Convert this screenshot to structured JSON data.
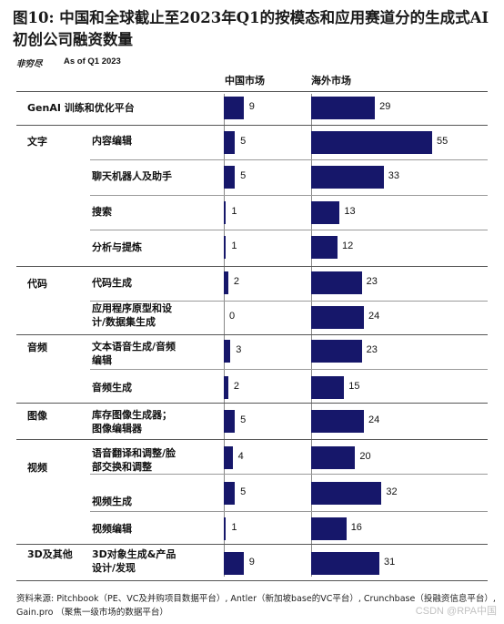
{
  "title": "图10: 中国和全球截止至2023年Q1的按模态和应用赛道分的生成式AI初创公司融资数量",
  "source_left": "非穷尽",
  "as_of": "As of Q1 2023",
  "footnote": "资料来源: Pitchbook（PE、VC及并购项目数据平台）, Antler（新加坡base的VC平台）, Crunchbase（投融资信息平台）, Gain.pro （聚焦一级市场的数据平台）",
  "watermark": "CSDN @RPA中国",
  "chart_data": {
    "type": "bar",
    "orientation": "horizontal",
    "series": [
      {
        "name": "中国市场",
        "values": [
          9,
          5,
          5,
          1,
          1,
          2,
          0,
          3,
          2,
          5,
          4,
          5,
          1,
          9
        ]
      },
      {
        "name": "海外市场",
        "values": [
          29,
          55,
          33,
          13,
          12,
          23,
          24,
          23,
          15,
          24,
          20,
          32,
          16,
          31
        ]
      }
    ],
    "categories": [
      "GenAI 训练和优化平台",
      "内容编辑",
      "聊天机器人及助手",
      "搜索",
      "分析与提炼",
      "代码生成",
      "应用程序原型和设计/数据集生成",
      "文本语音生成/音频编辑",
      "音频生成",
      "库存图像生成器；图像编辑器",
      "语音翻译和调整/脸部交换和调整",
      "视频生成",
      "视频编辑",
      "3D对象生成&产品设计/发现"
    ],
    "category_display": [
      "GenAI 训练和优化平台",
      "内容编辑",
      "聊天机器人及助手",
      "搜索",
      "分析与提炼",
      "代码生成",
      "应用程序原型和设",
      "计/数据集生成",
      "文本语音生成/音频",
      "编辑",
      "音频生成",
      "库存图像生成器；",
      "图像编辑器",
      "语音翻译和调整/脸",
      "部交换和调整",
      "视频生成",
      "视频编辑",
      "3D对象生成&产品",
      "设计/发现"
    ],
    "groups": [
      {
        "label": "文字"
      },
      {
        "label": "代码"
      },
      {
        "label": "音频"
      },
      {
        "label": "图像"
      },
      {
        "label": "视频"
      },
      {
        "label": "3D及其他"
      }
    ],
    "xlim_china": [
      0,
      60
    ],
    "xlim_overseas": [
      0,
      60
    ],
    "grid": false,
    "legend": "column headers above bars"
  }
}
